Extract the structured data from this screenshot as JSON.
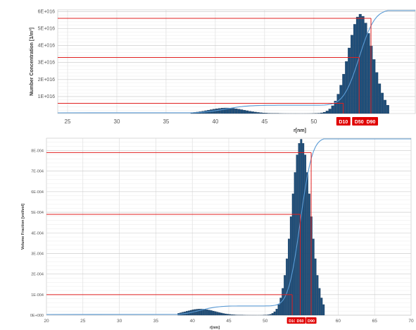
{
  "chart_data": [
    {
      "type": "bar",
      "ylabel": "Number Concentration [1/m³]",
      "xlabel": "r[nm]",
      "x_ticks": [
        "25",
        "30",
        "35",
        "40",
        "45",
        "50"
      ],
      "y_ticks": [
        "1E+016",
        "2E+016",
        "3E+016",
        "4E+016",
        "5E+016",
        "6E+016"
      ],
      "xlim": [
        24,
        60.3
      ],
      "ylim": [
        0,
        6.1e+16
      ],
      "grid": true,
      "series": [
        {
          "type": "bar",
          "values_from": "distribution",
          "peak_r": 54.6,
          "peak_y": 5.85e+16,
          "sigma": 1.25,
          "secondary_peak_r": 41.0,
          "secondary_peak_y": 3300000000000000.0,
          "secondary_sigma": 1.8,
          "r_start": 37.5,
          "r_end": 57.5
        },
        {
          "type": "line",
          "label": "cumulative"
        }
      ],
      "markers": [
        {
          "label": "D10",
          "r": 53.0,
          "y": 6000000000000000.0
        },
        {
          "label": "D50",
          "r": 54.6,
          "y": 3.3e+16
        },
        {
          "label": "D90",
          "r": 55.8,
          "y": 5.6e+16
        }
      ]
    },
    {
      "type": "bar",
      "ylabel": "Volume Fraction [vol/vol]",
      "xlabel": "r[nm]",
      "x_ticks": [
        "20",
        "25",
        "30",
        "35",
        "40",
        "45",
        "50",
        "55",
        "60",
        "65",
        "70"
      ],
      "y_ticks": [
        "0E+000",
        "1E-004",
        "2E-004",
        "3E-004",
        "4E-004",
        "5E-004",
        "6E-004",
        "7E-004",
        "8E-004"
      ],
      "xlim": [
        20,
        70
      ],
      "ylim": [
        0,
        0.00086
      ],
      "grid": true,
      "series": [
        {
          "type": "bar",
          "values_from": "distribution",
          "peak_r": 54.8,
          "peak_y": 0.000855,
          "sigma": 1.3,
          "secondary_peak_r": 41.0,
          "secondary_peak_y": 3e-05,
          "secondary_sigma": 2.0,
          "r_start": 38,
          "r_end": 58
        },
        {
          "type": "line",
          "label": "cumulative"
        }
      ],
      "markers": [
        {
          "label": "D10",
          "r": 53.7,
          "y": 0.0001
        },
        {
          "label": "D50",
          "r": 54.8,
          "y": 0.00049
        },
        {
          "label": "D90",
          "r": 56.3,
          "y": 0.00079
        }
      ]
    }
  ],
  "colors": {
    "bar": "#1f4e79",
    "bar_edge": "#0d2b4a",
    "cumulative": "#5b9bd5",
    "marker_line": "#e02020",
    "badge": "#e00000",
    "grid": "#d9d9d9"
  }
}
